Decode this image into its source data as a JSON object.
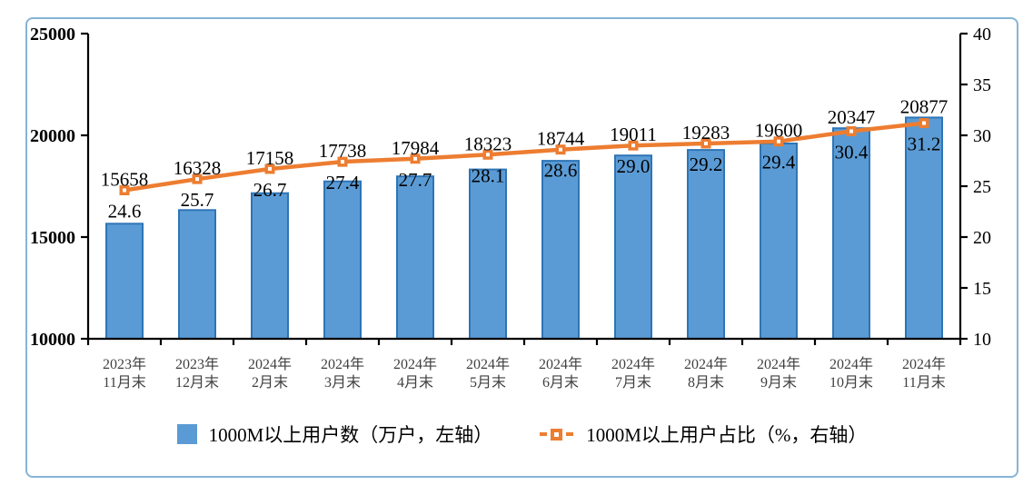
{
  "chart_data": {
    "type": "combo-bar-line",
    "categories": [
      [
        "2023年",
        "11月末"
      ],
      [
        "2023年",
        "12月末"
      ],
      [
        "2024年",
        "2月末"
      ],
      [
        "2024年",
        "3月末"
      ],
      [
        "2024年",
        "4月末"
      ],
      [
        "2024年",
        "5月末"
      ],
      [
        "2024年",
        "6月末"
      ],
      [
        "2024年",
        "7月末"
      ],
      [
        "2024年",
        "8月末"
      ],
      [
        "2024年",
        "9月末"
      ],
      [
        "2024年",
        "10月末"
      ],
      [
        "2024年",
        "11月末"
      ]
    ],
    "series": [
      {
        "name": "1000M以上用户数（万户，左轴）",
        "type": "bar",
        "axis": "left",
        "color": "#5B9BD5",
        "border_color": "#2E75B6",
        "values": [
          15658,
          16328,
          17158,
          17738,
          17984,
          18323,
          18744,
          19011,
          19283,
          19600,
          20347,
          20877
        ],
        "labels": [
          "15658",
          "16328",
          "17158",
          "17738",
          "17984",
          "18323",
          "18744",
          "19011",
          "19283",
          "19600",
          "20347",
          "20877"
        ]
      },
      {
        "name": "1000M以上用户占比（%，右轴）",
        "type": "line",
        "axis": "right",
        "color": "#ED7D31",
        "marker": "open-square",
        "values": [
          24.6,
          25.7,
          26.7,
          27.4,
          27.7,
          28.1,
          28.6,
          29.0,
          29.2,
          29.4,
          30.4,
          31.2
        ],
        "labels": [
          "24.6",
          "25.7",
          "26.7",
          "27.4",
          "27.7",
          "28.1",
          "28.6",
          "29.0",
          "29.2",
          "29.4",
          "30.4",
          "31.2"
        ]
      }
    ],
    "left_axis": {
      "min": 10000,
      "max": 25000,
      "ticks": [
        10000,
        15000,
        20000,
        25000
      ]
    },
    "right_axis": {
      "min": 10,
      "max": 40,
      "ticks": [
        10,
        15,
        20,
        25,
        30,
        35,
        40
      ]
    },
    "grid": false,
    "legend_position": "bottom"
  },
  "frame": {
    "border_color": "#86B4D4",
    "background": "#FFFFFF",
    "axis_color": "#000000"
  }
}
